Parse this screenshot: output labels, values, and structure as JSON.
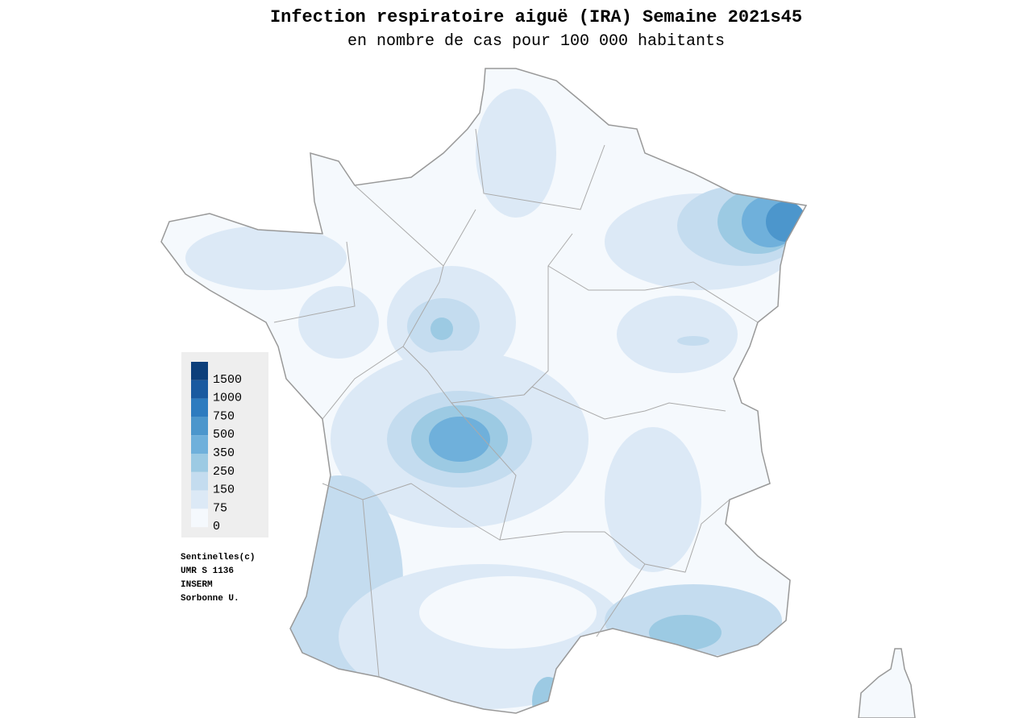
{
  "header": {
    "title": "Infection respiratoire aiguë (IRA) Semaine 2021s45",
    "subtitle": "en nombre de cas pour 100 000 habitants"
  },
  "legend": {
    "items": [
      {
        "label": "1500",
        "color": "#0d3f7a"
      },
      {
        "label": "1000",
        "color": "#1a5aa0"
      },
      {
        "label": "750",
        "color": "#2d7bbf"
      },
      {
        "label": "500",
        "color": "#4c96cc"
      },
      {
        "label": "350",
        "color": "#6fb0db"
      },
      {
        "label": "250",
        "color": "#9ccae3"
      },
      {
        "label": "150",
        "color": "#c4dcef"
      },
      {
        "label": "75",
        "color": "#dce9f6"
      },
      {
        "label": "0",
        "color": "#f5f9fd"
      }
    ]
  },
  "credits": [
    "Sentinelles(c)",
    "UMR S 1136",
    "INSERM",
    "Sorbonne U."
  ]
}
